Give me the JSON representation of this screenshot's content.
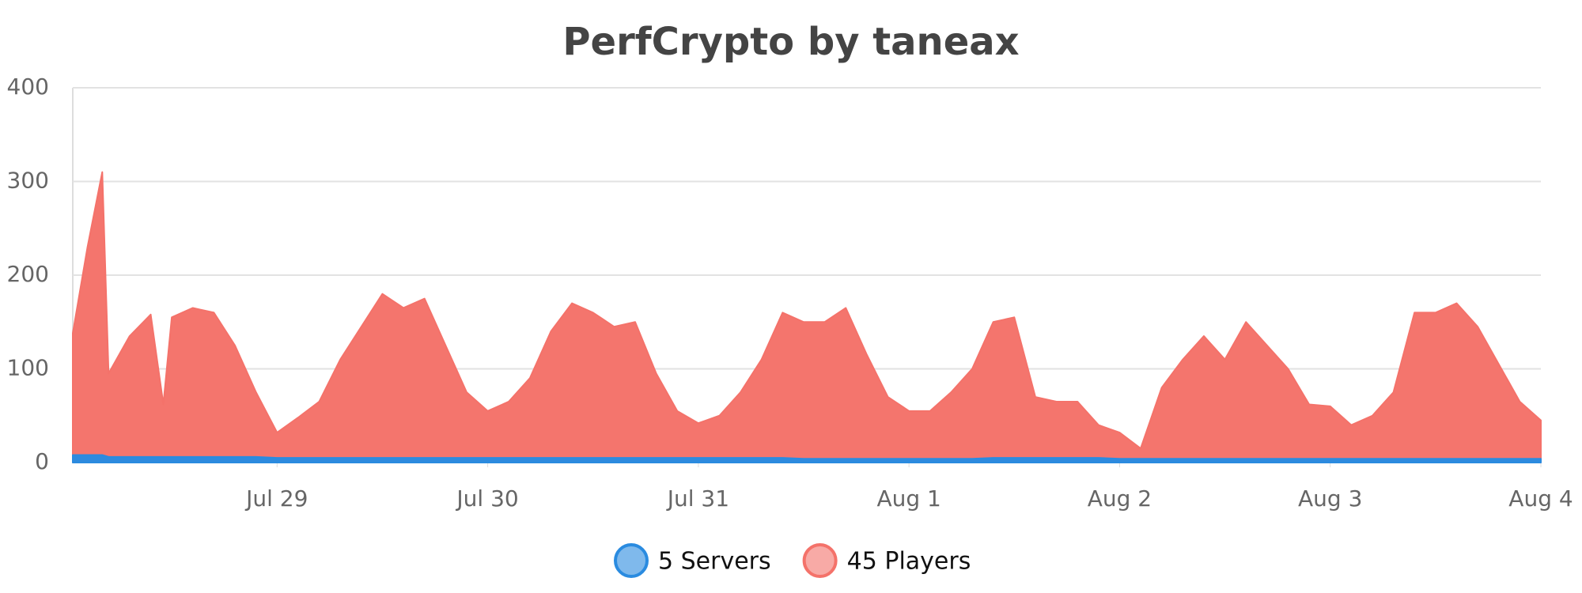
{
  "chart_data": {
    "type": "area",
    "title": "PerfCrypto by taneax",
    "x": [
      28.03,
      28.1,
      28.17,
      28.2,
      28.3,
      28.4,
      28.46,
      28.5,
      28.6,
      28.7,
      28.8,
      28.9,
      29.0,
      29.1,
      29.2,
      29.3,
      29.4,
      29.5,
      29.6,
      29.7,
      29.8,
      29.9,
      30.0,
      30.1,
      30.2,
      30.3,
      30.4,
      30.5,
      30.6,
      30.7,
      30.8,
      30.9,
      31.0,
      31.1,
      31.2,
      31.3,
      31.4,
      31.5,
      31.6,
      31.7,
      31.8,
      31.9,
      32.0,
      32.1,
      32.2,
      32.3,
      32.4,
      32.5,
      32.6,
      32.7,
      32.8,
      32.9,
      33.0,
      33.1,
      33.2,
      33.3,
      33.4,
      33.5,
      33.6,
      33.7,
      33.8,
      33.9,
      34.0,
      34.1,
      34.2,
      34.3,
      34.4,
      34.5,
      34.6,
      34.7,
      34.8,
      34.9,
      35.0
    ],
    "series": [
      {
        "name": "45 Players",
        "color": "#f4726a",
        "values": [
          138,
          230,
          310,
          95,
          135,
          158,
          62,
          155,
          165,
          160,
          125,
          75,
          32,
          48,
          65,
          110,
          145,
          180,
          165,
          175,
          125,
          75,
          55,
          65,
          90,
          140,
          170,
          160,
          145,
          150,
          95,
          55,
          42,
          50,
          75,
          110,
          160,
          150,
          150,
          165,
          115,
          70,
          55,
          55,
          75,
          100,
          150,
          155,
          70,
          65,
          65,
          40,
          32,
          15,
          80,
          110,
          135,
          110,
          150,
          125,
          100,
          62,
          60,
          40,
          50,
          75,
          160,
          160,
          170,
          145,
          105,
          65,
          45
        ]
      },
      {
        "name": "5 Servers",
        "color": "#2a8be0",
        "values": [
          8,
          8,
          8,
          6,
          6,
          6,
          6,
          6,
          6,
          6,
          6,
          6,
          5,
          5,
          5,
          5,
          5,
          5,
          5,
          5,
          5,
          5,
          5,
          5,
          5,
          5,
          5,
          5,
          5,
          5,
          5,
          5,
          5,
          5,
          5,
          5,
          5,
          4,
          4,
          4,
          4,
          4,
          4,
          4,
          4,
          4,
          5,
          5,
          5,
          5,
          5,
          5,
          4,
          4,
          4,
          4,
          4,
          4,
          4,
          4,
          4,
          4,
          4,
          4,
          4,
          4,
          4,
          4,
          4,
          4,
          4,
          4,
          4
        ]
      }
    ],
    "xlim": [
      28.03,
      35
    ],
    "xticks": [
      {
        "value": 29,
        "label": "Jul 29"
      },
      {
        "value": 30,
        "label": "Jul 30"
      },
      {
        "value": 31,
        "label": "Jul 31"
      },
      {
        "value": 32,
        "label": "Aug 1"
      },
      {
        "value": 33,
        "label": "Aug 2"
      },
      {
        "value": 34,
        "label": "Aug 3"
      },
      {
        "value": 35,
        "label": "Aug 4"
      }
    ],
    "ylim": [
      0,
      400
    ],
    "yticks": [
      0,
      100,
      200,
      300,
      400
    ],
    "grid": true,
    "legend": "bottom"
  }
}
